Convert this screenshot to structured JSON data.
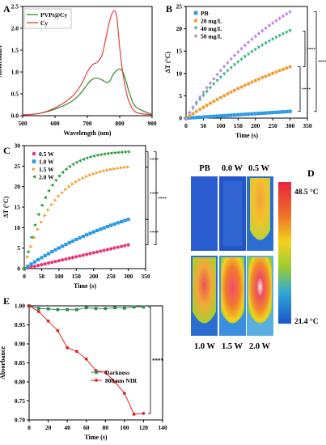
{
  "panel_letters": [
    "A",
    "B",
    "C",
    "D",
    "E"
  ],
  "chart_data": [
    {
      "panel": "A",
      "type": "line",
      "xlabel": "Wavelength (nm)",
      "ylabel": "Absorbance",
      "xlim": [
        500,
        900
      ],
      "ylim": [
        0,
        2.5
      ],
      "xticks": [
        "500",
        "600",
        "700",
        "800",
        "900"
      ],
      "yticks": [
        "0.0",
        "0.5",
        "1.0",
        "1.5",
        "2.0",
        "2.5"
      ],
      "legend_position": "top-left",
      "series": [
        {
          "name": "PVPt@Cy",
          "color": "#2e8b2e",
          "x": [
            500,
            550,
            600,
            650,
            680,
            700,
            715,
            730,
            745,
            760,
            770,
            780,
            790,
            800,
            810,
            820,
            830,
            850,
            900
          ],
          "y": [
            0.02,
            0.05,
            0.15,
            0.32,
            0.52,
            0.72,
            0.83,
            0.86,
            0.82,
            0.76,
            0.8,
            0.95,
            1.03,
            1.07,
            1.0,
            0.78,
            0.52,
            0.2,
            0.03
          ]
        },
        {
          "name": "Cy",
          "color": "#e83c3c",
          "x": [
            500,
            550,
            600,
            650,
            680,
            700,
            715,
            730,
            745,
            755,
            765,
            775,
            785,
            792,
            800,
            810,
            820,
            830,
            850,
            900
          ],
          "y": [
            0.02,
            0.05,
            0.18,
            0.42,
            0.7,
            1.0,
            1.16,
            1.22,
            1.38,
            1.7,
            2.05,
            2.32,
            2.4,
            2.2,
            1.55,
            0.95,
            0.55,
            0.3,
            0.08,
            0.02
          ]
        }
      ]
    },
    {
      "panel": "B",
      "type": "scatter",
      "xlabel": "Time (s)",
      "ylabel": "ΔT (°C)",
      "xlim": [
        0,
        350
      ],
      "ylim": [
        0,
        25
      ],
      "xticks": [
        "0",
        "50",
        "100",
        "150",
        "200",
        "250",
        "300",
        "350"
      ],
      "yticks": [
        "0",
        "5",
        "10",
        "15",
        "20",
        "25"
      ],
      "legend_position": "top-left",
      "significance": [
        "****",
        "****",
        "****"
      ],
      "series": [
        {
          "name": "PB",
          "color": "#2b9ae6",
          "marker": "square",
          "final": 1.5,
          "tau": 300,
          "shape": "linear"
        },
        {
          "name": "20 mg/L",
          "color": "#f39c35",
          "marker": "circle",
          "final": 11.5,
          "tau": 500,
          "shape": "exp"
        },
        {
          "name": "40 mg/L",
          "color": "#2fb37c",
          "marker": "triangle-down",
          "final": 19.5,
          "tau": 260,
          "shape": "exp"
        },
        {
          "name": "50 mg/L",
          "color": "#c48be8",
          "marker": "diamond",
          "final": 23.8,
          "tau": 300,
          "shape": "exp"
        }
      ],
      "time_step": 10
    },
    {
      "panel": "C",
      "type": "scatter",
      "xlabel": "Time (s)",
      "ylabel": "ΔT (°C)",
      "xlim": [
        0,
        350
      ],
      "ylim": [
        0,
        30
      ],
      "xticks": [
        "0",
        "50",
        "100",
        "150",
        "200",
        "250",
        "300",
        "350"
      ],
      "yticks": [
        "0",
        "5",
        "10",
        "15",
        "20",
        "25",
        "30"
      ],
      "legend_position": "top-left",
      "significance": [
        "****",
        "****",
        "****",
        "****"
      ],
      "series": [
        {
          "name": "0.5 W",
          "color": "#e8337a",
          "marker": "circle",
          "final": 5.8,
          "tau": 0,
          "shape": "linear"
        },
        {
          "name": "1.0 W",
          "color": "#2b9ae6",
          "marker": "square",
          "final": 12.0,
          "tau": 400,
          "shape": "exp"
        },
        {
          "name": "1.5 W",
          "color": "#f0a030",
          "marker": "triangle-right",
          "final": 24.8,
          "tau": 85,
          "shape": "exp"
        },
        {
          "name": "2.0 W",
          "color": "#2a9a3a",
          "marker": "triangle-left",
          "final": 28.5,
          "tau": 65,
          "shape": "exp"
        }
      ],
      "time_step": 10
    },
    {
      "panel": "E",
      "type": "line",
      "xlabel": "Time (s)",
      "ylabel": "Absorbance",
      "xlim": [
        0,
        140
      ],
      "ylim": [
        0.7,
        1.0
      ],
      "xticks": [
        "0",
        "20",
        "40",
        "60",
        "80",
        "100",
        "120",
        "140"
      ],
      "yticks": [
        "0.70",
        "0.75",
        "0.80",
        "0.85",
        "0.90",
        "0.95",
        "1.00"
      ],
      "legend_position": "right",
      "significance": [
        "****"
      ],
      "series": [
        {
          "name": "Darkness",
          "color": "#2e8b57",
          "marker": "square",
          "x": [
            0,
            10,
            20,
            30,
            40,
            50,
            60,
            70,
            80,
            90,
            100,
            110,
            120
          ],
          "y": [
            1.0,
            0.993,
            0.992,
            0.99,
            0.99,
            0.99,
            0.995,
            0.993,
            0.993,
            0.995,
            0.994,
            0.997,
            0.997
          ]
        },
        {
          "name": "808 nm NIR",
          "color": "#e02020",
          "marker": "circle",
          "x": [
            0,
            10,
            20,
            30,
            40,
            50,
            60,
            70,
            80,
            90,
            100,
            110,
            120
          ],
          "y": [
            1.0,
            0.985,
            0.96,
            0.935,
            0.89,
            0.88,
            0.86,
            0.83,
            0.825,
            0.8,
            0.77,
            0.715,
            0.717
          ]
        }
      ]
    }
  ],
  "thermal": {
    "top_labels": [
      "PB",
      "0.0 W",
      "0.5 W"
    ],
    "bottom_labels": [
      "1.0 W",
      "1.5 W",
      "2.0 W"
    ],
    "scale_max": "48.5 °C",
    "scale_min": "21.4 °C"
  }
}
